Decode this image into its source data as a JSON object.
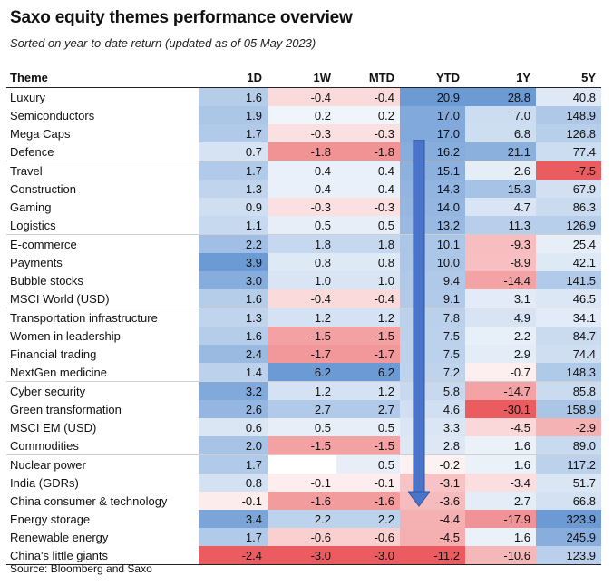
{
  "title": "Saxo equity themes performance overview",
  "subtitle": "Sorted on year-to-date return (updated as of 05 May 2023)",
  "headers": [
    "Theme",
    "1D",
    "1W",
    "MTD",
    "YTD",
    "1Y",
    "5Y"
  ],
  "rows": [
    [
      "Luxury",
      "1.6",
      "-0.4",
      "-0.4",
      "20.9",
      "28.8",
      "40.8"
    ],
    [
      "Semiconductors",
      "1.9",
      "0.2",
      "0.2",
      "17.0",
      "7.0",
      "148.9"
    ],
    [
      "Mega Caps",
      "1.7",
      "-0.3",
      "-0.3",
      "17.0",
      "6.8",
      "126.8"
    ],
    [
      "Defence",
      "0.7",
      "-1.8",
      "-1.8",
      "16.2",
      "21.1",
      "77.4"
    ],
    [
      "Travel",
      "1.7",
      "0.4",
      "0.4",
      "15.1",
      "2.6",
      "-7.5"
    ],
    [
      "Construction",
      "1.3",
      "0.4",
      "0.4",
      "14.3",
      "15.3",
      "67.9"
    ],
    [
      "Gaming",
      "0.9",
      "-0.3",
      "-0.3",
      "14.0",
      "4.7",
      "86.3"
    ],
    [
      "Logistics",
      "1.1",
      "0.5",
      "0.5",
      "13.2",
      "11.3",
      "126.9"
    ],
    [
      "E-commerce",
      "2.2",
      "1.8",
      "1.8",
      "10.1",
      "-9.3",
      "25.4"
    ],
    [
      "Payments",
      "3.9",
      "0.8",
      "0.8",
      "10.0",
      "-8.9",
      "42.1"
    ],
    [
      "Bubble stocks",
      "3.0",
      "1.0",
      "1.0",
      "9.4",
      "-14.4",
      "141.5"
    ],
    [
      "MSCI World (USD)",
      "1.6",
      "-0.4",
      "-0.4",
      "9.1",
      "3.1",
      "46.5"
    ],
    [
      "Transportation infrastructure",
      "1.3",
      "1.2",
      "1.2",
      "7.8",
      "4.9",
      "34.1"
    ],
    [
      "Women in leadership",
      "1.6",
      "-1.5",
      "-1.5",
      "7.5",
      "2.2",
      "84.7"
    ],
    [
      "Financial trading",
      "2.4",
      "-1.7",
      "-1.7",
      "7.5",
      "2.9",
      "74.4"
    ],
    [
      "NextGen medicine",
      "1.4",
      "6.2",
      "6.2",
      "7.2",
      "-0.7",
      "148.3"
    ],
    [
      "Cyber security",
      "3.2",
      "1.2",
      "1.2",
      "5.8",
      "-14.7",
      "85.8"
    ],
    [
      "Green transformation",
      "2.6",
      "2.7",
      "2.7",
      "4.6",
      "-30.1",
      "158.9"
    ],
    [
      "MSCI EM (USD)",
      "0.6",
      "0.5",
      "0.5",
      "3.3",
      "-4.5",
      "-2.9"
    ],
    [
      "Commodities",
      "2.0",
      "-1.5",
      "-1.5",
      "2.8",
      "1.6",
      "89.0"
    ],
    [
      "Nuclear power",
      "1.7",
      "",
      "0.5",
      "-0.2",
      "1.6",
      "117.2"
    ],
    [
      "India (GDRs)",
      "0.8",
      "-0.1",
      "-0.1",
      "-3.1",
      "-3.4",
      "51.7"
    ],
    [
      "China consumer & technology",
      "-0.1",
      "-1.6",
      "-1.6",
      "-3.6",
      "2.7",
      "66.8"
    ],
    [
      "Energy storage",
      "3.4",
      "2.2",
      "2.2",
      "-4.4",
      "-17.9",
      "323.9"
    ],
    [
      "Renewable energy",
      "1.7",
      "-0.6",
      "-0.6",
      "-4.5",
      "1.6",
      "245.9"
    ],
    [
      "China's little giants",
      "-2.4",
      "-3.0",
      "-3.0",
      "-11.2",
      "-10.6",
      "123.9"
    ]
  ],
  "source": "Source: Bloomberg and Saxo",
  "colors": {
    "positive": "#5b8fd0",
    "negative": "#e84a4f",
    "arrow": "#4a74c9",
    "header_rule": "#222222"
  }
}
